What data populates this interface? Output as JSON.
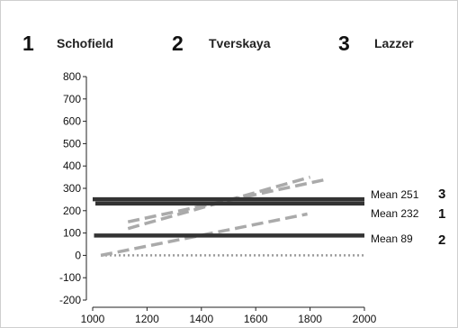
{
  "chart_data": {
    "type": "line",
    "title": "",
    "xlabel": "",
    "ylabel": "",
    "xlim": [
      1000,
      2000
    ],
    "ylim": [
      -200,
      800
    ],
    "x_ticks": [
      "1000",
      "1200",
      "1400",
      "1600",
      "1800",
      "2000"
    ],
    "y_ticks": [
      "800",
      "700",
      "600",
      "500",
      "400",
      "300",
      "200",
      "100",
      "0",
      "-100",
      "-200"
    ],
    "grid": false,
    "legend": [
      {
        "number": "1",
        "name": "Schofield"
      },
      {
        "number": "2",
        "name": "Tverskaya"
      },
      {
        "number": "3",
        "name": "Lazzer"
      }
    ],
    "zero_line": {
      "y": 0,
      "x": [
        1030,
        2000
      ],
      "style": "dotted",
      "color": "#999999"
    },
    "means": [
      {
        "label": "Mean 251",
        "value": 251,
        "number": "3",
        "x": [
          1000,
          2000
        ],
        "color": "#333333"
      },
      {
        "label": "Mean 232",
        "value": 232,
        "number": "1",
        "x": [
          1010,
          2000
        ],
        "color": "#333333"
      },
      {
        "label": "Mean 89",
        "value": 89,
        "number": "2",
        "x": [
          1005,
          2000
        ],
        "color": "#333333"
      }
    ],
    "regression_lines": [
      {
        "number": "3",
        "x": [
          1130,
          1860
        ],
        "y": [
          150,
          340
        ],
        "style": "dashed",
        "color": "#aaaaaa"
      },
      {
        "number": "1",
        "x": [
          1130,
          1800
        ],
        "y": [
          120,
          350
        ],
        "style": "dashed",
        "color": "#aaaaaa"
      },
      {
        "number": "2",
        "x": [
          1030,
          1790
        ],
        "y": [
          0,
          185
        ],
        "style": "dashed",
        "color": "#aaaaaa"
      }
    ]
  }
}
